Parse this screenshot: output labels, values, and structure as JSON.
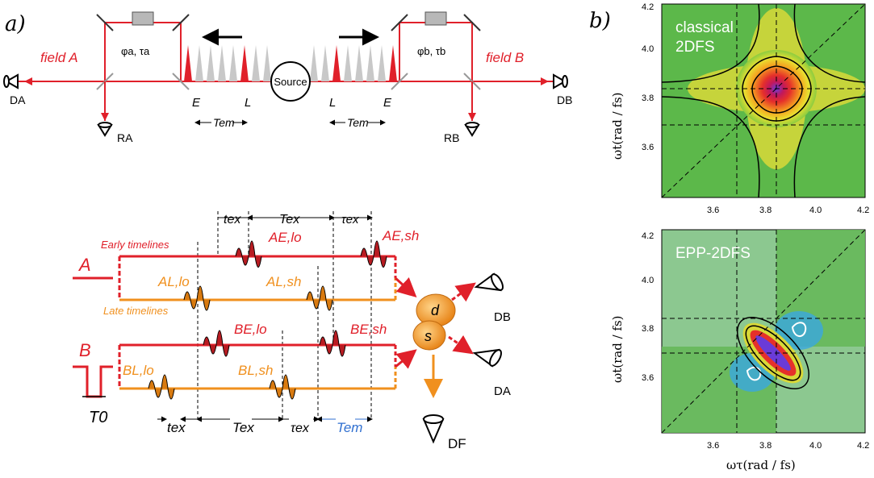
{
  "figure": {
    "panel_a_label": "a)",
    "panel_b_label": "b)"
  },
  "setup": {
    "field_a": "field A",
    "field_b": "field B",
    "phase_a": "φa, τa",
    "phase_b": "φb, τb",
    "source": "Source",
    "early": "E",
    "late": "L",
    "t_em": "Tem",
    "detector_da": "DA",
    "detector_db": "DB",
    "ref_ra": "RA",
    "ref_rb": "RB",
    "colors": {
      "red": "#e0202a",
      "gray": "#c8c8c8"
    }
  },
  "timeline": {
    "label_a": "A",
    "label_b": "B",
    "early_timelines": "Early timelines",
    "late_timelines": "Late timelines",
    "t_ex_top": "tex",
    "T_ex_top": "Tex",
    "tau_ex_top": "τex",
    "pulse_aelo": "AE,lo",
    "pulse_aesh": "AE,sh",
    "pulse_allo": "AL,lo",
    "pulse_alsh": "AL,sh",
    "pulse_belo": "BE,lo",
    "pulse_besh": "BE,sh",
    "pulse_bllo": "BL,lo",
    "pulse_blsh": "BL,sh",
    "t0": "T0",
    "bottom_tex": "tex",
    "bottom_Tex": "Tex",
    "bottom_tauex": "τex",
    "bottom_Tem": "Tem",
    "sample_d": "d",
    "sample_s": "s",
    "det_db": "DB",
    "det_da": "DA",
    "det_df": "DF",
    "colors": {
      "red": "#e0202a",
      "orange": "#f0901e",
      "blue": "#2f6fd0"
    }
  },
  "plots": {
    "top_title_line1": "classical",
    "top_title_line2": "2DFS",
    "bottom_title": "EPP-2DFS",
    "y_label": "ωt(rad / fs)",
    "x_label": "ωτ(rad / fs)",
    "x_ticks": [
      "3.6",
      "3.8",
      "4.0",
      "4.2"
    ],
    "y_ticks_top": [
      "4.2",
      "4.0",
      "3.8",
      "3.6"
    ],
    "y_ticks_bottom": [
      "4.2",
      "4.0",
      "3.8",
      "3.6"
    ]
  }
}
